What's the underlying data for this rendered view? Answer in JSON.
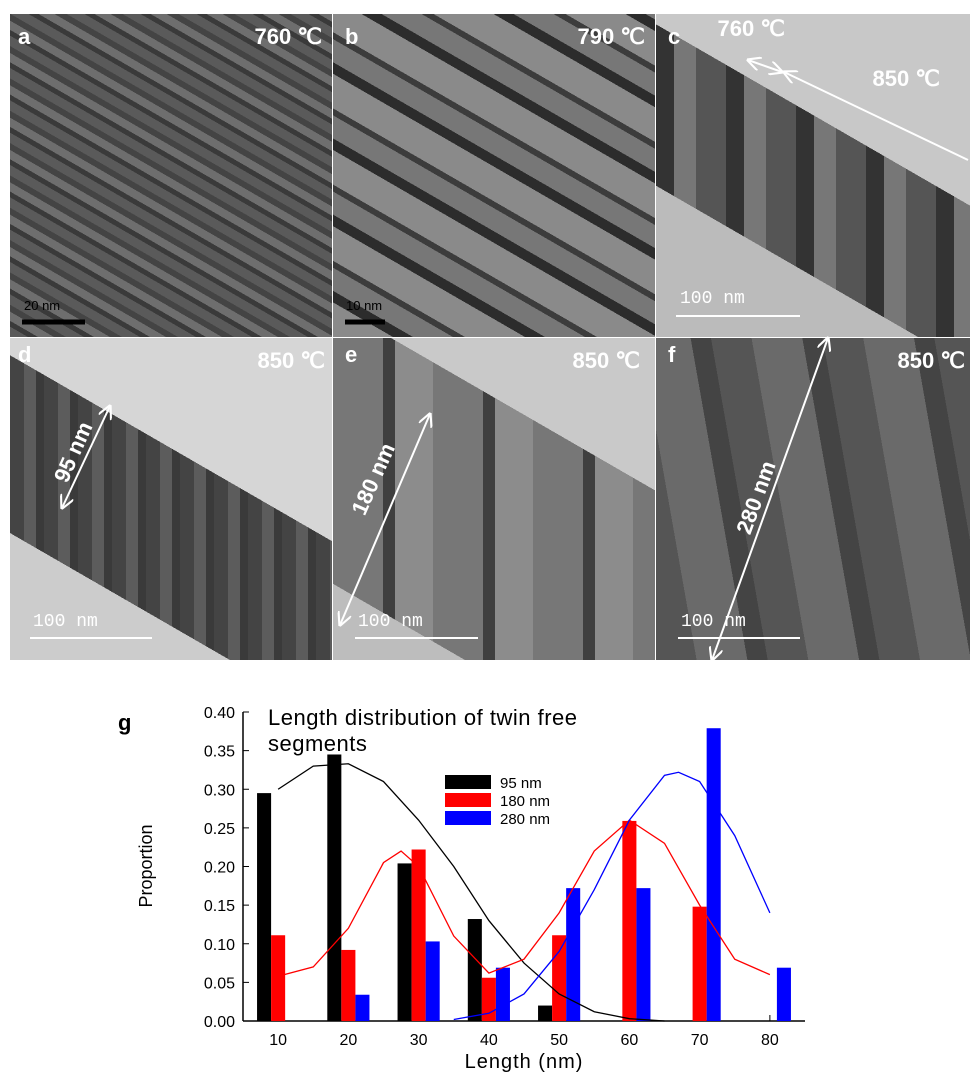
{
  "panels": [
    {
      "label": "a",
      "temperature": "760 ℃",
      "scale_bar": "20 nm"
    },
    {
      "label": "b",
      "temperature": "790 ℃",
      "scale_bar": "10 nm"
    },
    {
      "label": "c",
      "temperature": "850 ℃",
      "inner_temperature": "760 ℃",
      "scale_bar": "100 nm"
    },
    {
      "label": "d",
      "temperature": "850 ℃",
      "size": "95 nm",
      "scale_bar": "100 nm"
    },
    {
      "label": "e",
      "temperature": "850 ℃",
      "size": "180 nm",
      "scale_bar": "100 nm"
    },
    {
      "label": "f",
      "temperature": "850 ℃",
      "size": "280 nm",
      "scale_bar": "100 nm"
    }
  ],
  "chart_data": {
    "type": "bar",
    "panel_label": "g",
    "title": "Length distribution of twin free segments",
    "x_label": "Length (nm)",
    "y_label": "Proportion",
    "x": [
      10,
      20,
      30,
      40,
      50,
      60,
      70,
      80
    ],
    "series": [
      {
        "name": "95 nm",
        "color": "#000000",
        "values": [
          0.295,
          0.345,
          0.204,
          0.132,
          0.02,
          null,
          null,
          null
        ]
      },
      {
        "name": "180 nm",
        "color": "#ff0000",
        "values": [
          0.111,
          0.092,
          0.222,
          0.056,
          0.111,
          0.259,
          0.148,
          null
        ]
      },
      {
        "name": "280 nm",
        "color": "#0000ff",
        "values": [
          null,
          0.034,
          0.103,
          0.069,
          0.172,
          0.172,
          0.379,
          0.069
        ]
      }
    ],
    "fits": [
      {
        "color": "#000000",
        "x": [
          10,
          15,
          20,
          25,
          30,
          35,
          40,
          45,
          50,
          55,
          60,
          65
        ],
        "values": [
          0.3,
          0.33,
          0.333,
          0.31,
          0.26,
          0.2,
          0.13,
          0.075,
          0.035,
          0.012,
          0.003,
          0
        ]
      },
      {
        "color": "#ff0000",
        "x": [
          10,
          15,
          20,
          25,
          27.5,
          30,
          35,
          40,
          45,
          50,
          55,
          60,
          65,
          70,
          75,
          80
        ],
        "values": [
          0.058,
          0.07,
          0.12,
          0.205,
          0.22,
          0.2,
          0.11,
          0.062,
          0.08,
          0.14,
          0.22,
          0.26,
          0.23,
          0.15,
          0.08,
          0.06
        ]
      },
      {
        "color": "#0000ff",
        "x": [
          35,
          40,
          45,
          50,
          55,
          60,
          65,
          67,
          70,
          75,
          80
        ],
        "values": [
          0.002,
          0.01,
          0.035,
          0.09,
          0.17,
          0.26,
          0.318,
          0.322,
          0.31,
          0.24,
          0.14
        ]
      }
    ],
    "xlim": [
      5,
      85
    ],
    "ylim": [
      0,
      0.4
    ],
    "xticks": [
      10,
      20,
      30,
      40,
      50,
      60,
      70,
      80
    ],
    "yticks": [
      {
        "value": 0,
        "label": "0.00"
      },
      {
        "value": 0.05,
        "label": "0.05"
      },
      {
        "value": 0.1,
        "label": "0.10"
      },
      {
        "value": 0.15,
        "label": "0.15"
      },
      {
        "value": 0.2,
        "label": "0.20"
      },
      {
        "value": 0.25,
        "label": "0.25"
      },
      {
        "value": 0.3,
        "label": "0.30"
      },
      {
        "value": 0.35,
        "label": "0.35"
      },
      {
        "value": 0.4,
        "label": "0.40"
      }
    ]
  }
}
